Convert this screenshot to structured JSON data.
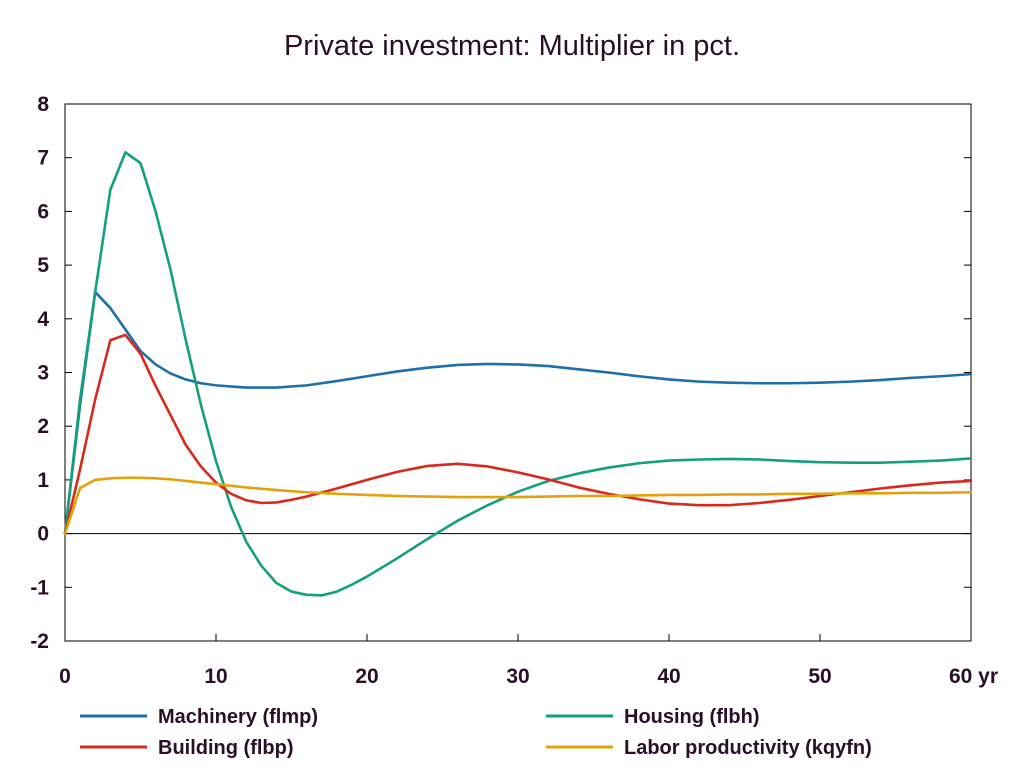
{
  "chart_data": {
    "type": "line",
    "title": "Private investment: Multiplier in pct.",
    "xlabel": "",
    "ylabel": "",
    "x_unit_label": "yr",
    "xlim": [
      0,
      60
    ],
    "ylim": [
      -2,
      8
    ],
    "x_ticks": [
      0,
      10,
      20,
      30,
      40,
      50,
      60
    ],
    "x_tick_labels": [
      "0",
      "10",
      "20",
      "30",
      "40",
      "50",
      "60 yr"
    ],
    "y_ticks": [
      -2,
      -1,
      0,
      1,
      2,
      3,
      4,
      5,
      6,
      7,
      8
    ],
    "y_tick_labels": [
      "-2",
      "-1",
      "0",
      "1",
      "2",
      "3",
      "4",
      "5",
      "6",
      "7",
      "8"
    ],
    "grid": false,
    "zero_line": true,
    "legend_position": "bottom",
    "series": [
      {
        "name": "Machinery (flmp)",
        "color": "#1f6fa8",
        "points": [
          [
            0,
            0
          ],
          [
            1,
            2.4
          ],
          [
            2,
            4.5
          ],
          [
            3,
            4.2
          ],
          [
            4,
            3.8
          ],
          [
            5,
            3.4
          ],
          [
            6,
            3.15
          ],
          [
            7,
            2.98
          ],
          [
            8,
            2.87
          ],
          [
            9,
            2.8
          ],
          [
            10,
            2.76
          ],
          [
            12,
            2.72
          ],
          [
            14,
            2.72
          ],
          [
            16,
            2.76
          ],
          [
            18,
            2.84
          ],
          [
            20,
            2.93
          ],
          [
            22,
            3.02
          ],
          [
            24,
            3.09
          ],
          [
            26,
            3.14
          ],
          [
            28,
            3.16
          ],
          [
            30,
            3.15
          ],
          [
            32,
            3.12
          ],
          [
            34,
            3.06
          ],
          [
            36,
            3.0
          ],
          [
            38,
            2.93
          ],
          [
            40,
            2.87
          ],
          [
            42,
            2.83
          ],
          [
            44,
            2.81
          ],
          [
            46,
            2.8
          ],
          [
            48,
            2.8
          ],
          [
            50,
            2.81
          ],
          [
            52,
            2.83
          ],
          [
            54,
            2.86
          ],
          [
            56,
            2.9
          ],
          [
            58,
            2.93
          ],
          [
            60,
            2.97
          ]
        ]
      },
      {
        "name": "Housing (flbh)",
        "color": "#14a07c",
        "points": [
          [
            0,
            0
          ],
          [
            1,
            2.5
          ],
          [
            2,
            4.5
          ],
          [
            3,
            6.4
          ],
          [
            4,
            7.1
          ],
          [
            5,
            6.9
          ],
          [
            6,
            6.0
          ],
          [
            7,
            4.9
          ],
          [
            8,
            3.6
          ],
          [
            9,
            2.4
          ],
          [
            10,
            1.35
          ],
          [
            11,
            0.5
          ],
          [
            12,
            -0.15
          ],
          [
            13,
            -0.6
          ],
          [
            14,
            -0.92
          ],
          [
            15,
            -1.08
          ],
          [
            16,
            -1.14
          ],
          [
            17,
            -1.15
          ],
          [
            18,
            -1.08
          ],
          [
            19,
            -0.95
          ],
          [
            20,
            -0.8
          ],
          [
            22,
            -0.46
          ],
          [
            24,
            -0.1
          ],
          [
            26,
            0.24
          ],
          [
            28,
            0.53
          ],
          [
            30,
            0.78
          ],
          [
            32,
            0.98
          ],
          [
            34,
            1.12
          ],
          [
            36,
            1.23
          ],
          [
            38,
            1.31
          ],
          [
            40,
            1.36
          ],
          [
            42,
            1.38
          ],
          [
            44,
            1.39
          ],
          [
            46,
            1.38
          ],
          [
            48,
            1.35
          ],
          [
            50,
            1.33
          ],
          [
            52,
            1.32
          ],
          [
            54,
            1.32
          ],
          [
            56,
            1.34
          ],
          [
            58,
            1.36
          ],
          [
            60,
            1.4
          ]
        ]
      },
      {
        "name": "Building (flbp)",
        "color": "#d9281c",
        "points": [
          [
            0,
            0
          ],
          [
            1,
            1.2
          ],
          [
            2,
            2.5
          ],
          [
            3,
            3.6
          ],
          [
            4,
            3.7
          ],
          [
            5,
            3.35
          ],
          [
            6,
            2.75
          ],
          [
            7,
            2.2
          ],
          [
            8,
            1.65
          ],
          [
            9,
            1.25
          ],
          [
            10,
            0.95
          ],
          [
            11,
            0.74
          ],
          [
            12,
            0.62
          ],
          [
            13,
            0.57
          ],
          [
            14,
            0.58
          ],
          [
            15,
            0.63
          ],
          [
            16,
            0.69
          ],
          [
            18,
            0.84
          ],
          [
            20,
            1.0
          ],
          [
            22,
            1.15
          ],
          [
            24,
            1.26
          ],
          [
            26,
            1.3
          ],
          [
            28,
            1.25
          ],
          [
            30,
            1.14
          ],
          [
            32,
            1.01
          ],
          [
            34,
            0.86
          ],
          [
            36,
            0.74
          ],
          [
            38,
            0.64
          ],
          [
            40,
            0.56
          ],
          [
            42,
            0.53
          ],
          [
            44,
            0.53
          ],
          [
            46,
            0.57
          ],
          [
            48,
            0.63
          ],
          [
            50,
            0.7
          ],
          [
            52,
            0.77
          ],
          [
            54,
            0.84
          ],
          [
            56,
            0.9
          ],
          [
            58,
            0.95
          ],
          [
            60,
            0.98
          ]
        ]
      },
      {
        "name": "Labor productivity (kqyfn)",
        "color": "#e4a20a",
        "points": [
          [
            0,
            0
          ],
          [
            1,
            0.85
          ],
          [
            2,
            1.0
          ],
          [
            3,
            1.03
          ],
          [
            4,
            1.04
          ],
          [
            5,
            1.04
          ],
          [
            6,
            1.03
          ],
          [
            7,
            1.01
          ],
          [
            8,
            0.98
          ],
          [
            9,
            0.95
          ],
          [
            10,
            0.92
          ],
          [
            12,
            0.86
          ],
          [
            14,
            0.81
          ],
          [
            16,
            0.77
          ],
          [
            18,
            0.74
          ],
          [
            20,
            0.72
          ],
          [
            22,
            0.7
          ],
          [
            24,
            0.69
          ],
          [
            26,
            0.68
          ],
          [
            28,
            0.68
          ],
          [
            30,
            0.68
          ],
          [
            32,
            0.69
          ],
          [
            34,
            0.7
          ],
          [
            36,
            0.7
          ],
          [
            38,
            0.71
          ],
          [
            40,
            0.72
          ],
          [
            42,
            0.72
          ],
          [
            44,
            0.73
          ],
          [
            46,
            0.73
          ],
          [
            48,
            0.74
          ],
          [
            50,
            0.74
          ],
          [
            52,
            0.75
          ],
          [
            54,
            0.75
          ],
          [
            56,
            0.76
          ],
          [
            58,
            0.76
          ],
          [
            60,
            0.77
          ]
        ]
      }
    ],
    "legend": [
      {
        "label": "Machinery (flmp)",
        "color": "#1f6fa8"
      },
      {
        "label": "Housing (flbh)",
        "color": "#14a07c"
      },
      {
        "label": "Building (flbp)",
        "color": "#d9281c"
      },
      {
        "label": "Labor productivity (kqyfn)",
        "color": "#e4a20a"
      }
    ]
  }
}
